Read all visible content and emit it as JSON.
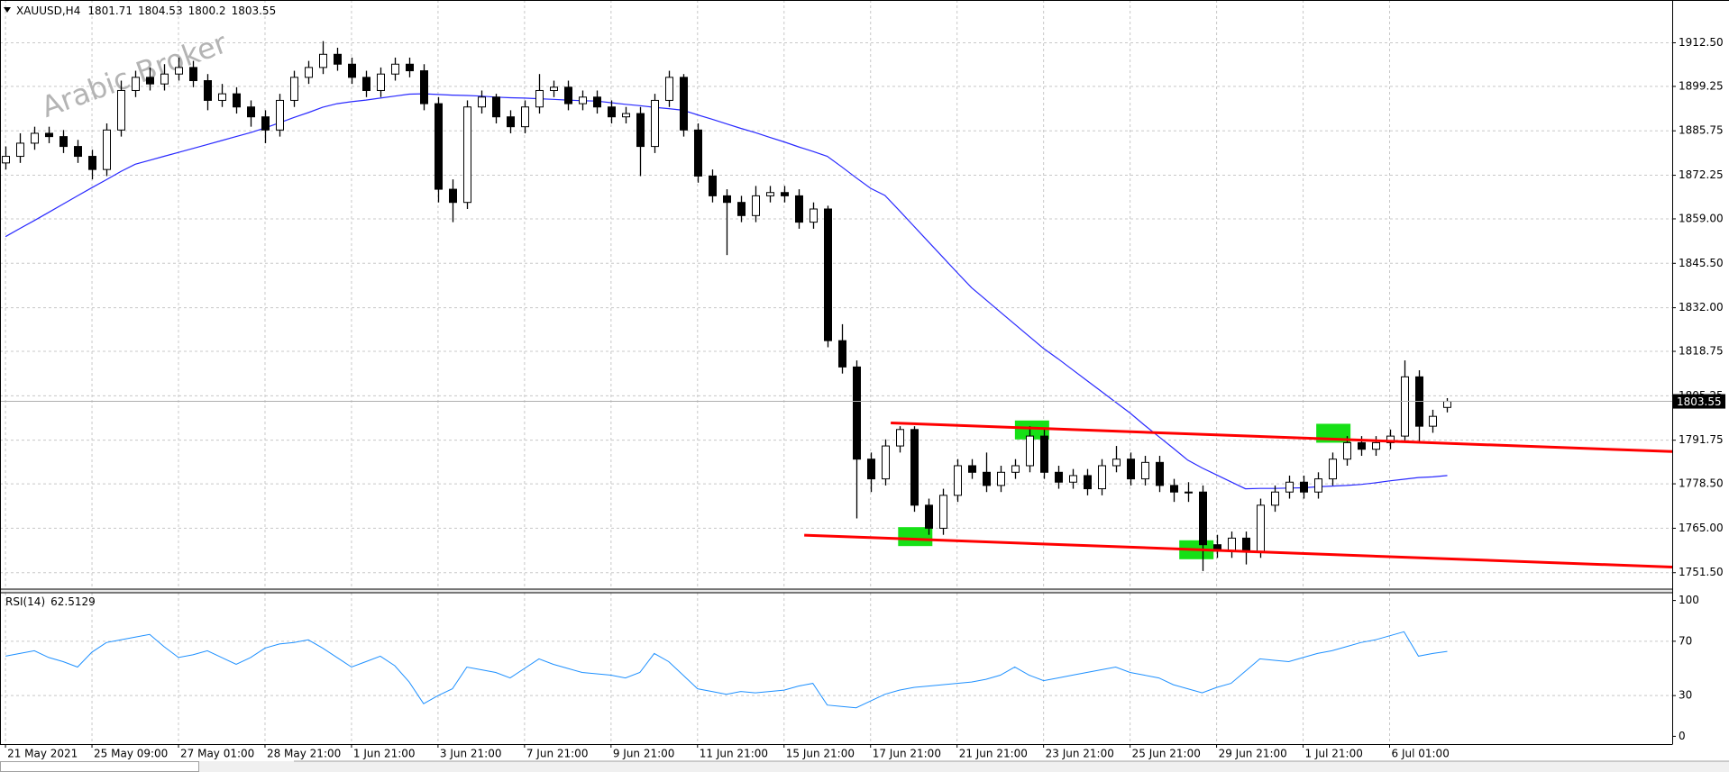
{
  "chart_data": {
    "type": "candlestick",
    "symbol": "XAUUSD,H4",
    "watermark": "Arabic Broker",
    "up_color": "#ffffff",
    "down_color": "#000000",
    "open": [
      1876,
      1878,
      1882,
      1885,
      1884,
      1881,
      1878,
      1874,
      1886,
      1898,
      1902,
      1900,
      1903,
      1905,
      1901,
      1895,
      1897,
      1893,
      1890,
      1886,
      1895,
      1902,
      1905,
      1909,
      1906,
      1902,
      1898,
      1903,
      1906,
      1904,
      1894,
      1868,
      1864,
      1893,
      1896,
      1890,
      1887,
      1893,
      1898,
      1899,
      1894,
      1896,
      1893,
      1890,
      1891,
      1881,
      1895,
      1902,
      1886,
      1872,
      1866,
      1864,
      1860,
      1866,
      1867,
      1866,
      1858,
      1862,
      1822,
      1814,
      1786,
      1780,
      1790,
      1795,
      1772,
      1765,
      1775,
      1784,
      1782,
      1778,
      1782,
      1784,
      1793,
      1782,
      1779,
      1781,
      1777,
      1784,
      1786,
      1780,
      1785,
      1778,
      1776,
      1776,
      1760,
      1758,
      1762,
      1758,
      1772,
      1776,
      1779,
      1776,
      1780,
      1786,
      1791,
      1789,
      1791,
      1793,
      1811,
      1796,
      1801.71
    ],
    "high": [
      1881,
      1885,
      1887,
      1887,
      1886,
      1883,
      1880,
      1888,
      1901,
      1904,
      1905,
      1906,
      1908,
      1907,
      1903,
      1900,
      1899,
      1895,
      1892,
      1897,
      1904,
      1907,
      1913,
      1911,
      1908,
      1904,
      1905,
      1908,
      1908,
      1906,
      1896,
      1871,
      1895,
      1898,
      1897,
      1892,
      1895,
      1903,
      1901,
      1901,
      1898,
      1898,
      1895,
      1893,
      1893,
      1897,
      1904,
      1903,
      1888,
      1874,
      1868,
      1866,
      1869,
      1869,
      1869,
      1868,
      1864,
      1863,
      1827,
      1816,
      1788,
      1792,
      1796,
      1796,
      1774,
      1777,
      1786,
      1786,
      1788,
      1784,
      1786,
      1796,
      1795,
      1784,
      1783,
      1783,
      1786,
      1790,
      1788,
      1787,
      1787,
      1780,
      1779,
      1778,
      1763,
      1764,
      1764,
      1774,
      1778,
      1781,
      1781,
      1782,
      1788,
      1793,
      1793,
      1793,
      1795,
      1816,
      1813,
      1801,
      1804.53
    ],
    "low": [
      1874,
      1876,
      1880,
      1882,
      1879,
      1876,
      1871,
      1872,
      1884,
      1896,
      1898,
      1898,
      1901,
      1899,
      1892,
      1893,
      1891,
      1887,
      1882,
      1884,
      1893,
      1900,
      1903,
      1904,
      1900,
      1896,
      1896,
      1901,
      1902,
      1892,
      1864,
      1858,
      1862,
      1891,
      1888,
      1885,
      1885,
      1891,
      1896,
      1892,
      1892,
      1891,
      1888,
      1888,
      1872,
      1879,
      1893,
      1884,
      1870,
      1864,
      1848,
      1858,
      1858,
      1864,
      1864,
      1856,
      1856,
      1820,
      1812,
      1768,
      1776,
      1778,
      1788,
      1770,
      1763,
      1763,
      1773,
      1780,
      1776,
      1776,
      1780,
      1782,
      1780,
      1777,
      1777,
      1775,
      1775,
      1782,
      1778,
      1778,
      1776,
      1773,
      1773,
      1752,
      1756,
      1756,
      1754,
      1756,
      1770,
      1774,
      1774,
      1774,
      1778,
      1784,
      1787,
      1787,
      1789,
      1791,
      1791,
      1794,
      1800.2
    ],
    "close": [
      1878,
      1882,
      1885,
      1884,
      1881,
      1878,
      1874,
      1886,
      1898,
      1902,
      1900,
      1903,
      1905,
      1901,
      1895,
      1897,
      1893,
      1890,
      1886,
      1895,
      1902,
      1905,
      1909,
      1906,
      1902,
      1898,
      1903,
      1906,
      1904,
      1894,
      1868,
      1864,
      1893,
      1896,
      1890,
      1887,
      1893,
      1898,
      1899,
      1894,
      1896,
      1893,
      1890,
      1891,
      1881,
      1895,
      1902,
      1886,
      1872,
      1866,
      1864,
      1860,
      1866,
      1867,
      1866,
      1858,
      1862,
      1822,
      1814,
      1786,
      1780,
      1790,
      1795,
      1772,
      1765,
      1775,
      1784,
      1782,
      1778,
      1782,
      1784,
      1793,
      1782,
      1779,
      1781,
      1777,
      1784,
      1786,
      1780,
      1785,
      1778,
      1776,
      1776,
      1760,
      1758,
      1762,
      1758,
      1772,
      1776,
      1779,
      1776,
      1780,
      1786,
      1791,
      1789,
      1791,
      1793,
      1811,
      1796,
      1799,
      1803.55
    ],
    "moving_average": {
      "color": "#2929ff",
      "values": [
        1853.6,
        1856.1,
        1858.5,
        1861.0,
        1863.5,
        1866.0,
        1868.5,
        1870.9,
        1873.4,
        1875.6,
        1876.8,
        1878.0,
        1879.2,
        1880.4,
        1881.6,
        1882.8,
        1884.0,
        1885.2,
        1886.6,
        1888.2,
        1889.8,
        1891.3,
        1892.9,
        1894.0,
        1894.6,
        1895.1,
        1895.7,
        1896.3,
        1896.9,
        1897.0,
        1896.8,
        1896.6,
        1896.5,
        1896.3,
        1896.0,
        1895.8,
        1895.7,
        1895.5,
        1895.3,
        1895.1,
        1894.9,
        1894.8,
        1894.3,
        1893.8,
        1893.4,
        1892.9,
        1892.5,
        1892.0,
        1890.6,
        1889.3,
        1887.9,
        1886.5,
        1885.2,
        1883.8,
        1882.4,
        1880.9,
        1879.5,
        1878.0,
        1874.8,
        1871.5,
        1868.3,
        1866.1,
        1861.5,
        1856.8,
        1852.1,
        1847.4,
        1842.7,
        1838.1,
        1834.4,
        1830.7,
        1827.0,
        1823.3,
        1819.6,
        1816.5,
        1813.2,
        1809.9,
        1806.6,
        1803.3,
        1800.0,
        1796.3,
        1792.8,
        1789.3,
        1785.7,
        1783.3,
        1781.2,
        1779.1,
        1777.0,
        1777.1,
        1777.1,
        1777.2,
        1777.3,
        1777.6,
        1777.8,
        1778.0,
        1778.3,
        1778.8,
        1779.4,
        1779.9,
        1780.4,
        1780.6,
        1781.0
      ]
    },
    "trendline_color": "#ff0000",
    "trendlines": [
      {
        "x": [
          61.4,
          115.6
        ],
        "y": [
          1797.0,
          1788.3
        ]
      },
      {
        "x": [
          55.4,
          115.6
        ],
        "y": [
          1762.9,
          1753.2
        ]
      }
    ],
    "highlights": {
      "color": "#16e016",
      "x": [
        63.1,
        71.2,
        82.6,
        92.1
      ],
      "y": [
        1762.6,
        1795.0,
        1758.6,
        1794.0
      ]
    },
    "xlim": [
      -0.38,
      115.6
    ],
    "xticks": [
      {
        "value": 0,
        "label": "21 May 2021"
      },
      {
        "value": 6,
        "label": "25 May 09:00"
      },
      {
        "value": 12,
        "label": "27 May 01:00"
      },
      {
        "value": 18,
        "label": "28 May 21:00"
      },
      {
        "value": 24,
        "label": "1 Jun 21:00"
      },
      {
        "value": 30,
        "label": "3 Jun 21:00"
      },
      {
        "value": 36,
        "label": "7 Jun 21:00"
      },
      {
        "value": 42,
        "label": "9 Jun 21:00"
      },
      {
        "value": 48,
        "label": "11 Jun 21:00"
      },
      {
        "value": 54,
        "label": "15 Jun 21:00"
      },
      {
        "value": 60,
        "label": "17 Jun 21:00"
      },
      {
        "value": 66,
        "label": "21 Jun 21:00"
      },
      {
        "value": 72,
        "label": "23 Jun 21:00"
      },
      {
        "value": 78,
        "label": "25 Jun 21:00"
      },
      {
        "value": 84,
        "label": "29 Jun 21:00"
      },
      {
        "value": 90,
        "label": "1 Jul 21:00"
      },
      {
        "value": 96,
        "label": "6 Jul 01:00"
      }
    ],
    "ylim": [
      1746.5,
      1925.5
    ],
    "yticks": [
      {
        "value": 1912.5,
        "label": "1912.50"
      },
      {
        "value": 1899.25,
        "label": "1899.25"
      },
      {
        "value": 1885.75,
        "label": "1885.75"
      },
      {
        "value": 1872.25,
        "label": "1872.25"
      },
      {
        "value": 1859,
        "label": "1859.00"
      },
      {
        "value": 1845.5,
        "label": "1845.50"
      },
      {
        "value": 1832,
        "label": "1832.00"
      },
      {
        "value": 1818.75,
        "label": "1818.75"
      },
      {
        "value": 1805.25,
        "label": "1805.25"
      },
      {
        "value": 1791.75,
        "label": "1791.75"
      },
      {
        "value": 1778.5,
        "label": "1778.50"
      },
      {
        "value": 1765,
        "label": "1765.00"
      },
      {
        "value": 1751.5,
        "label": "1751.50"
      }
    ],
    "grid": true,
    "rsi": {
      "label": "RSI(14)",
      "color": "#1e90ff",
      "values": [
        59,
        61,
        63,
        58,
        55,
        51,
        62,
        69,
        71,
        73,
        75,
        66,
        58,
        60,
        63,
        58,
        53,
        58,
        65,
        68,
        69,
        71,
        65,
        58,
        51,
        55,
        59,
        52,
        40,
        24,
        30,
        35,
        51,
        49,
        47,
        43,
        50,
        57,
        53,
        50,
        47,
        46,
        45,
        43,
        47,
        61,
        55,
        45,
        35,
        33,
        31,
        33,
        32,
        33,
        34,
        37,
        39,
        23,
        22,
        21,
        26,
        31,
        34,
        36,
        37,
        38,
        39,
        40,
        42,
        45,
        51,
        45,
        41,
        43,
        45,
        47,
        49,
        51,
        47,
        45,
        43,
        38,
        35,
        32,
        36,
        39,
        48,
        57,
        56,
        55,
        58,
        61,
        63,
        66,
        69,
        71,
        74,
        77,
        59,
        61,
        62.5129
      ],
      "ylim": [
        -5.7,
        105.7
      ],
      "yticks": [
        0,
        30,
        70,
        100
      ],
      "levels": [
        30,
        70
      ]
    }
  }
}
